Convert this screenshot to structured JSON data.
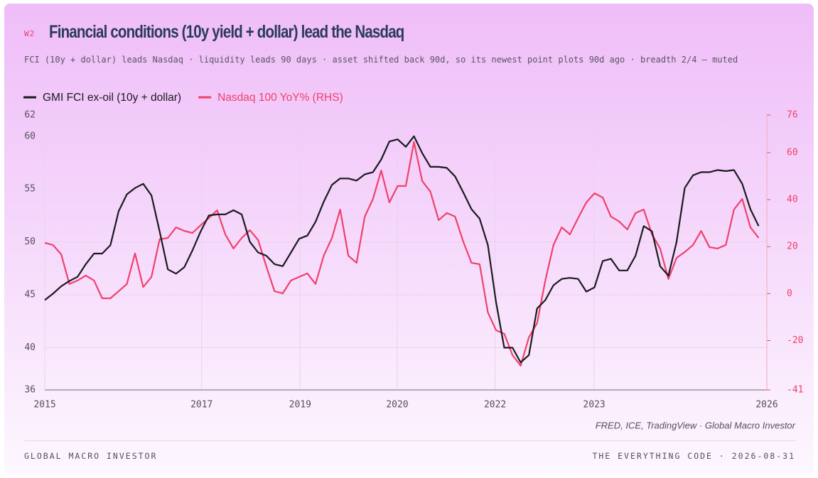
{
  "header": {
    "tag": "W2",
    "title": "Financial conditions (10y yield + dollar) lead the Nasdaq",
    "subtitle": "FCI (10y + dollar) leads Nasdaq · liquidity leads 90 days · asset shifted back 90d, so its newest point plots 90d ago · breadth 2/4 — muted"
  },
  "chart_data": {
    "type": "line",
    "x": [
      2015,
      2015.125,
      2015.25,
      2015.375,
      2015.5,
      2015.625,
      2015.75,
      2015.875,
      2016,
      2016.125,
      2016.25,
      2016.375,
      2016.5,
      2016.625,
      2016.75,
      2016.875,
      2017,
      2017.125,
      2017.25,
      2017.375,
      2017.5,
      2017.625,
      2017.75,
      2017.875,
      2018,
      2018.125,
      2018.25,
      2018.375,
      2018.5,
      2018.625,
      2018.75,
      2018.875,
      2019,
      2019.125,
      2019.25,
      2019.375,
      2019.5,
      2019.625,
      2019.75,
      2019.875,
      2020,
      2020.125,
      2020.25,
      2020.375,
      2020.5,
      2020.625,
      2020.75,
      2020.875,
      2021,
      2021.125,
      2021.25,
      2021.375,
      2021.5,
      2021.625,
      2021.75,
      2021.875,
      2022,
      2022.125,
      2022.25,
      2022.375,
      2022.5,
      2022.625,
      2022.75,
      2022.875,
      2023,
      2023.125,
      2023.25,
      2023.375,
      2023.5,
      2023.625,
      2023.75,
      2023.875,
      2024,
      2024.125,
      2024.25,
      2024.375,
      2024.5,
      2024.625,
      2024.75,
      2024.875,
      2025,
      2025.125,
      2025.25,
      2025.375,
      2025.5,
      2025.625,
      2025.75,
      2025.875
    ],
    "series": [
      {
        "name": "GMI FCI ex-oil (10y + dollar)",
        "color": "#1a1a1f",
        "values": [
          44.5,
          45.1,
          45.8,
          46.3,
          46.7,
          47.9,
          48.9,
          48.9,
          49.7,
          52.9,
          54.5,
          55.1,
          55.5,
          54.4,
          51.0,
          47.4,
          47.0,
          47.6,
          49.2,
          51.0,
          52.5,
          52.6,
          52.6,
          53.0,
          52.6,
          50.0,
          49.0,
          48.7,
          47.9,
          47.7,
          49.0,
          50.3,
          50.6,
          51.9,
          53.8,
          55.4,
          56.0,
          56.0,
          55.8,
          56.4,
          56.6,
          57.8,
          59.5,
          59.7,
          59.0,
          60.0,
          58.4,
          57.1,
          57.1,
          57.0,
          56.2,
          54.7,
          53.1,
          52.2,
          49.7,
          44.3,
          40.0,
          40.0,
          38.6,
          39.3,
          43.7,
          44.5,
          45.9,
          46.5,
          46.6,
          46.5,
          45.3,
          45.7,
          48.2,
          48.4,
          47.3,
          47.3,
          48.7,
          51.5,
          51.0,
          47.7,
          46.8,
          50.0,
          55.1,
          56.3,
          56.6,
          56.6,
          56.8,
          56.7,
          56.8,
          55.5,
          53.1,
          51.5
        ]
      },
      {
        "name": "Nasdaq 100 YoY% (RHS)",
        "color": "#f0416c",
        "axis": "y2",
        "values": [
          21.6,
          20.7,
          16.7,
          4.1,
          5.6,
          7.7,
          5.6,
          -2.0,
          -2.0,
          1.0,
          4.1,
          17.1,
          2.8,
          7.1,
          23.1,
          23.7,
          28.2,
          26.7,
          25.8,
          29.1,
          32.2,
          35.5,
          25.2,
          19.2,
          23.7,
          27.0,
          22.8,
          11.6,
          1.0,
          0.1,
          5.6,
          7.1,
          8.6,
          4.1,
          16.1,
          23.7,
          35.8,
          16.1,
          13.1,
          32.8,
          40.3,
          52.4,
          38.8,
          45.8,
          45.8,
          64.5,
          47.9,
          43.4,
          31.3,
          34.3,
          32.8,
          22.2,
          13.1,
          12.5,
          -8.0,
          -15.6,
          -17.1,
          -26.2,
          -30.7,
          -18.6,
          -12.6,
          5.6,
          20.7,
          28.2,
          25.2,
          32.2,
          38.8,
          42.7,
          40.9,
          32.8,
          30.7,
          27.3,
          34.3,
          35.8,
          25.2,
          19.2,
          6.2,
          15.2,
          17.7,
          20.7,
          26.7,
          19.8,
          19.2,
          20.7,
          35.8,
          40.3,
          28.2,
          23.7
        ]
      }
    ],
    "xlim": [
      2015,
      2026
    ],
    "xticks": [
      2015,
      {
        "value": 2017.39,
        "label": "2017"
      },
      {
        "value": 2018.89,
        "label": "2019"
      },
      {
        "value": 2020.37,
        "label": "2020"
      },
      {
        "value": 2021.86,
        "label": "2022"
      },
      {
        "value": 2023.37,
        "label": "2023"
      },
      2026
    ],
    "ylim": [
      36,
      62
    ],
    "yticks": [
      36,
      40,
      45,
      50,
      55,
      60,
      62
    ],
    "y2lim": [
      -41,
      76
    ],
    "y2ticks": [
      -41,
      -20,
      0,
      20,
      40,
      60,
      76
    ],
    "grid": true,
    "source": "FRED, ICE, TradingView · Global Macro Investor"
  },
  "footer": {
    "left": "GLOBAL MACRO INVESTOR",
    "right": "THE EVERYTHING CODE · 2026-08-31"
  }
}
